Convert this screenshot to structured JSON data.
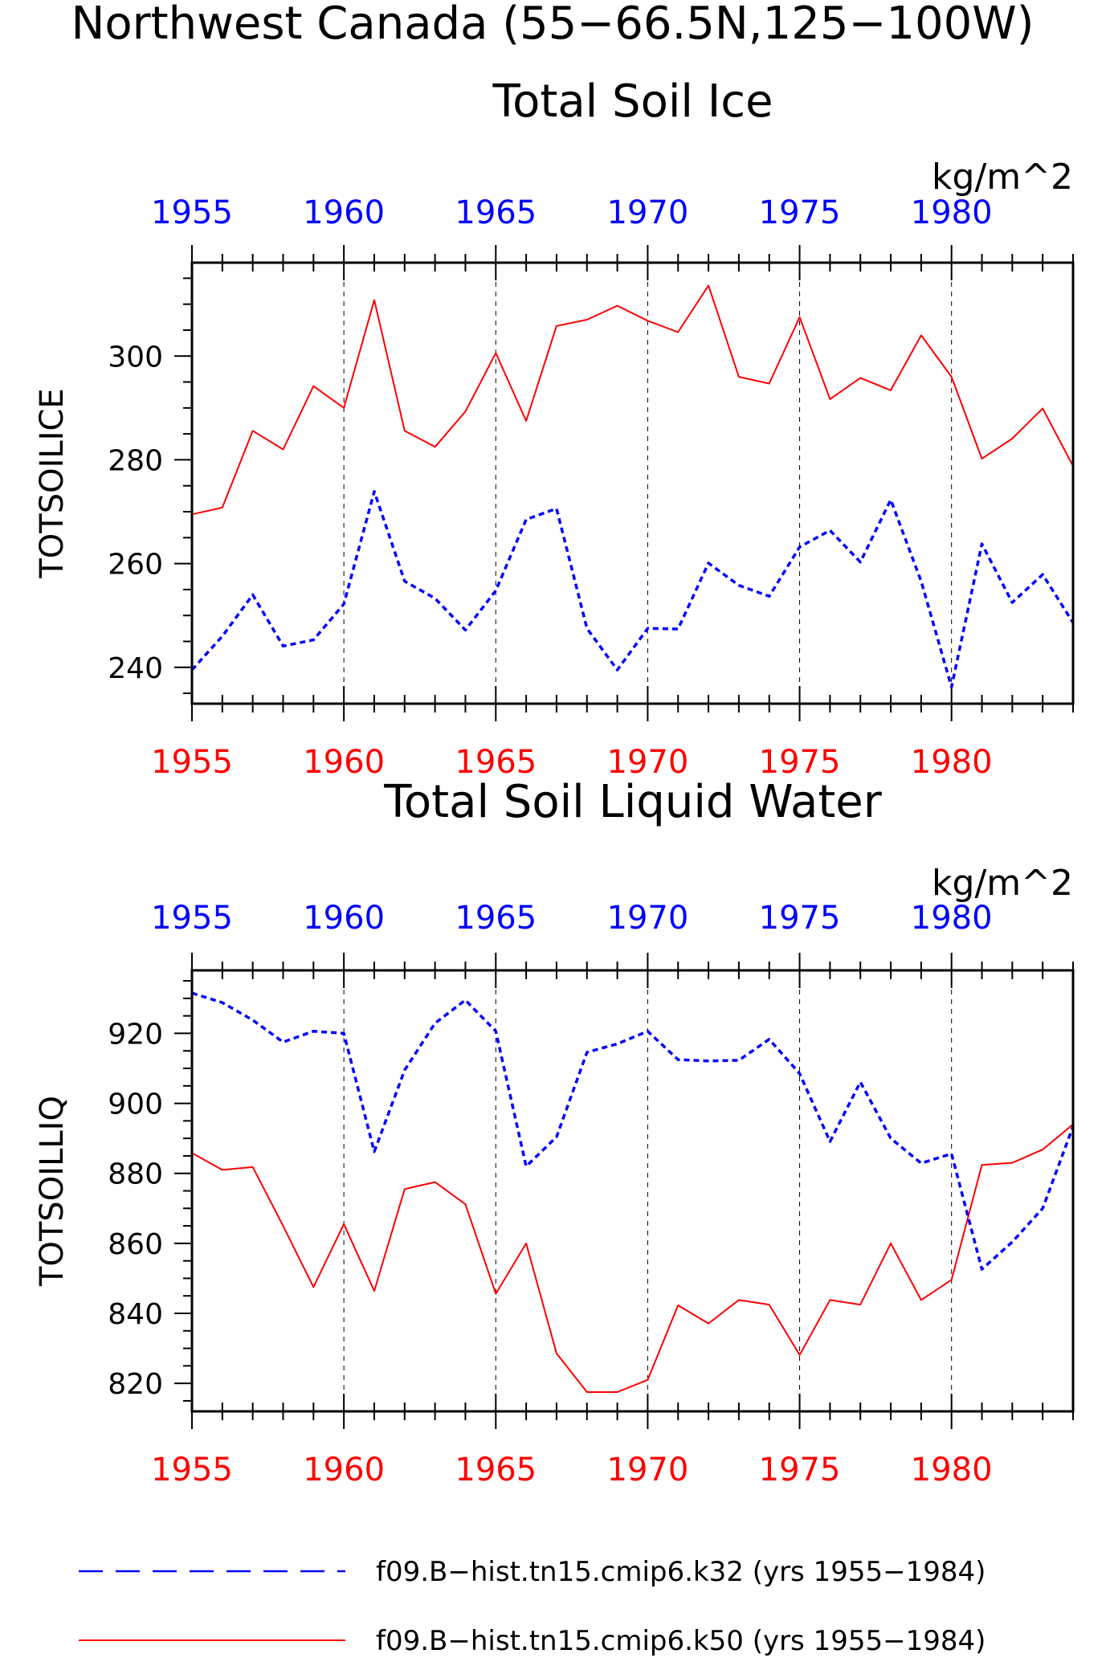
{
  "figure": {
    "title": "Northwest Canada (55−66.5N,125−100W)",
    "legend": [
      {
        "label": "f09.B−hist.tn15.cmip6.k32 (yrs 1955−1984)",
        "color": "#0000ff",
        "style": "dashed"
      },
      {
        "label": "f09.B−hist.tn15.cmip6.k50 (yrs 1955−1984)",
        "color": "#ff0000",
        "style": "solid"
      }
    ]
  },
  "chart_data": [
    {
      "type": "line",
      "title": "Total Soil Ice",
      "units": "kg/m^2",
      "ylabel": "TOTSOILICE",
      "xlim": [
        1955,
        1984
      ],
      "ylim": [
        233,
        318
      ],
      "x_ticks": [
        1955,
        1960,
        1965,
        1970,
        1975,
        1980
      ],
      "y_ticks": [
        240,
        260,
        280,
        300
      ],
      "grid": "vertical dashed at major x ticks",
      "x": [
        1955,
        1956,
        1957,
        1958,
        1959,
        1960,
        1961,
        1962,
        1963,
        1964,
        1965,
        1966,
        1967,
        1968,
        1969,
        1970,
        1971,
        1972,
        1973,
        1974,
        1975,
        1976,
        1977,
        1978,
        1979,
        1980,
        1981,
        1982,
        1983,
        1984
      ],
      "series": [
        {
          "name": "f09.B−hist.tn15.cmip6.k50",
          "color": "#ff0000",
          "style": "solid",
          "values": [
            269.5,
            270.8,
            285.6,
            282.0,
            294.2,
            290.0,
            310.8,
            285.6,
            282.5,
            289.3,
            300.6,
            287.5,
            305.8,
            307.0,
            309.7,
            306.8,
            304.6,
            313.6,
            296.0,
            294.7,
            307.5,
            291.7,
            295.8,
            293.4,
            304.0,
            296.0,
            280.2,
            284.1,
            289.9,
            278.8
          ]
        },
        {
          "name": "f09.B−hist.tn15.cmip6.k32",
          "color": "#0000ff",
          "style": "dashed",
          "values": [
            239.5,
            246.0,
            254.0,
            244.1,
            245.3,
            252.2,
            273.9,
            256.6,
            253.3,
            247.2,
            254.8,
            268.5,
            270.6,
            247.5,
            239.5,
            247.5,
            247.4,
            260.1,
            255.8,
            253.7,
            263.2,
            266.4,
            260.3,
            272.3,
            256.6,
            236.2,
            263.8,
            252.5,
            257.9,
            248.6
          ]
        }
      ]
    },
    {
      "type": "line",
      "title": "Total Soil Liquid Water",
      "units": "kg/m^2",
      "ylabel": "TOTSOILLIQ",
      "xlim": [
        1955,
        1984
      ],
      "ylim": [
        812,
        938
      ],
      "x_ticks": [
        1955,
        1960,
        1965,
        1970,
        1975,
        1980
      ],
      "y_ticks": [
        820,
        840,
        860,
        880,
        900,
        920
      ],
      "grid": "vertical dashed at major x ticks",
      "x": [
        1955,
        1956,
        1957,
        1958,
        1959,
        1960,
        1961,
        1962,
        1963,
        1964,
        1965,
        1966,
        1967,
        1968,
        1969,
        1970,
        1971,
        1972,
        1973,
        1974,
        1975,
        1976,
        1977,
        1978,
        1979,
        1980,
        1981,
        1982,
        1983,
        1984
      ],
      "series": [
        {
          "name": "f09.B−hist.tn15.cmip6.k50",
          "color": "#ff0000",
          "style": "solid",
          "values": [
            885.8,
            881.0,
            881.8,
            865.0,
            847.5,
            865.5,
            846.4,
            875.5,
            877.5,
            871.2,
            845.6,
            860.0,
            828.6,
            817.5,
            817.5,
            821.0,
            842.3,
            837.1,
            843.8,
            842.5,
            828.1,
            843.8,
            842.5,
            860.0,
            843.8,
            849.6,
            882.4,
            883.0,
            886.8,
            894.0
          ]
        },
        {
          "name": "f09.B−hist.tn15.cmip6.k32",
          "color": "#0000ff",
          "style": "dashed",
          "values": [
            931.5,
            928.8,
            923.8,
            917.5,
            920.6,
            920.0,
            886.2,
            909.5,
            922.9,
            929.5,
            920.6,
            882.0,
            890.4,
            914.6,
            917.0,
            920.6,
            912.5,
            912.1,
            912.3,
            918.3,
            908.5,
            889.1,
            906.1,
            890.0,
            882.9,
            885.6,
            852.6,
            860.4,
            870.0,
            893.4
          ]
        }
      ]
    }
  ]
}
